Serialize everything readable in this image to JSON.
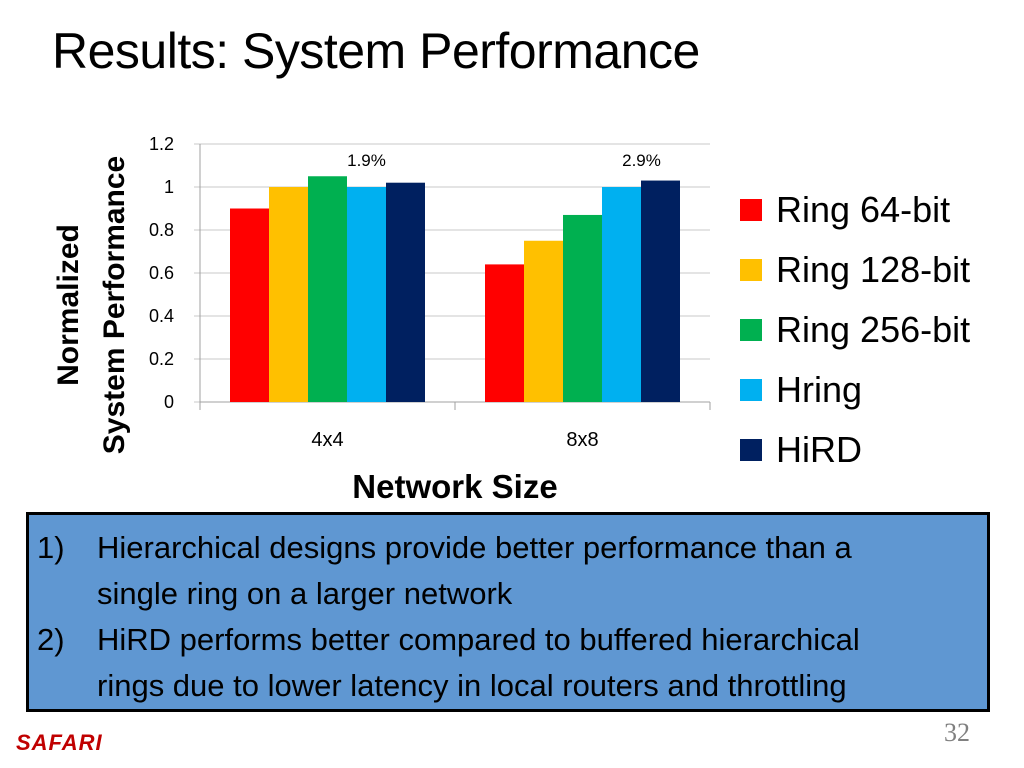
{
  "slide": {
    "title": "Results: System Performance",
    "page_number": "32",
    "logo_text": "SAFARI"
  },
  "chart_data": {
    "type": "bar",
    "categories": [
      "4x4",
      "8x8"
    ],
    "series": [
      {
        "name": "Ring 64-bit",
        "color": "#ff0000",
        "values": [
          0.9,
          0.64
        ]
      },
      {
        "name": "Ring 128-bit",
        "color": "#ffc000",
        "values": [
          1.0,
          0.75
        ]
      },
      {
        "name": "Ring 256-bit",
        "color": "#00b050",
        "values": [
          1.05,
          0.87
        ]
      },
      {
        "name": "Hring",
        "color": "#00b0f0",
        "values": [
          1.0,
          1.0
        ]
      },
      {
        "name": "HiRD",
        "color": "#002060",
        "values": [
          1.02,
          1.03
        ]
      }
    ],
    "annotations": [
      "1.9%",
      "2.9%"
    ],
    "xlabel": "Network Size",
    "ylabel_lines": [
      "Normalized",
      "System Performance"
    ],
    "ylim": [
      0,
      1.2
    ],
    "yticks": [
      "0",
      "0.2",
      "0.4",
      "0.6",
      "0.8",
      "1",
      "1.2"
    ],
    "grid": true,
    "legend_position": "right"
  },
  "callout": {
    "items": [
      {
        "number": "1)",
        "lines": [
          "Hierarchical designs provide better performance than a",
          "single ring on a larger network"
        ]
      },
      {
        "number": "2)",
        "lines": [
          "HiRD performs better compared to buffered hierarchical",
          "rings due to lower latency in local routers and throttling"
        ]
      }
    ]
  }
}
